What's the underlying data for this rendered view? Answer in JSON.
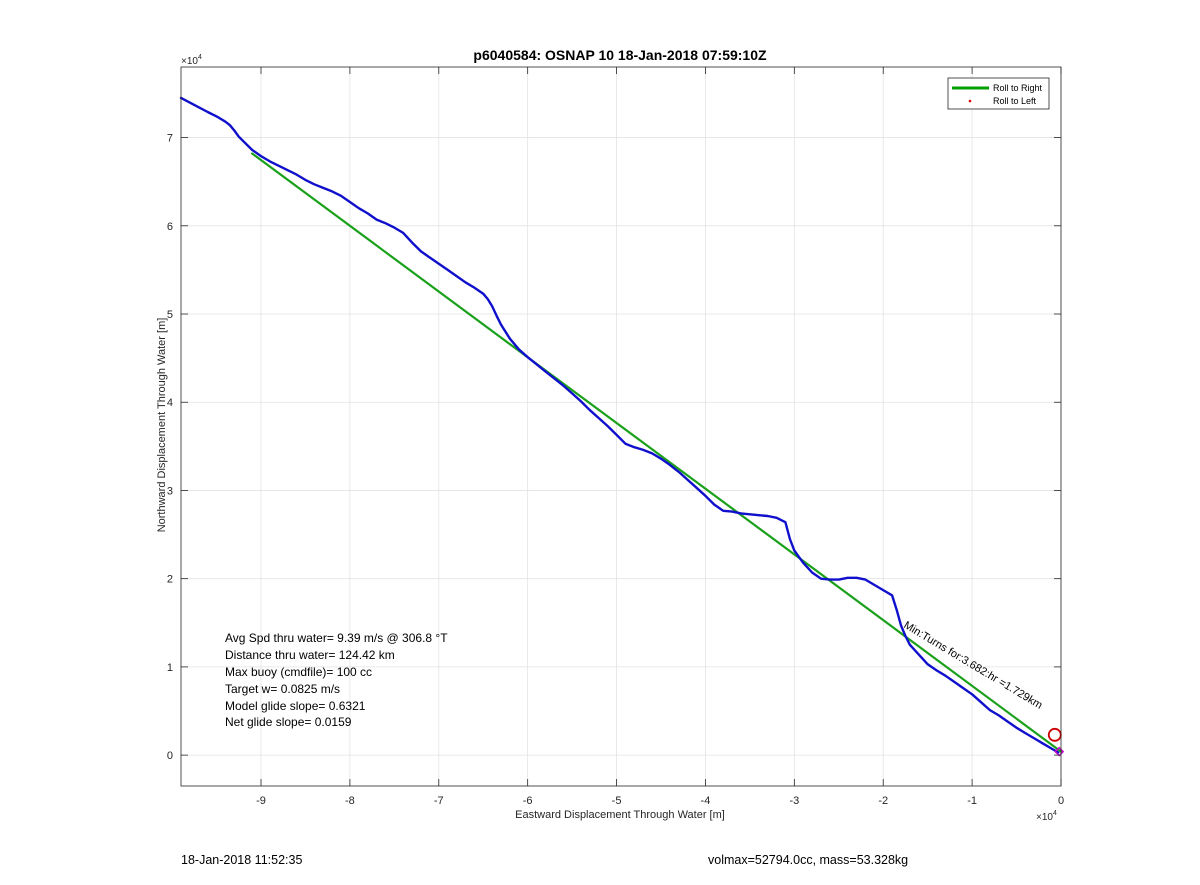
{
  "chart_data": {
    "type": "line",
    "title": "p6040584: OSNAP 10 18-Jan-2018 07:59:10Z",
    "xlabel": "Eastward Displacement Through Water [m]",
    "ylabel": "Northward Displacement Through Water [m]",
    "x_exponent_label": "×10",
    "x_exponent": "4",
    "y_exponent_label": "×10",
    "y_exponent": "4",
    "xlim": [
      -99000,
      0
    ],
    "ylim": [
      -3500,
      78000
    ],
    "x_ticks": [
      -90000,
      -80000,
      -70000,
      -60000,
      -50000,
      -40000,
      -30000,
      -20000,
      -10000,
      0
    ],
    "x_tick_labels": [
      "-9",
      "-8",
      "-7",
      "-6",
      "-5",
      "-4",
      "-3",
      "-2",
      "-1",
      "0"
    ],
    "y_ticks": [
      0,
      10000,
      20000,
      30000,
      40000,
      50000,
      60000,
      70000
    ],
    "y_tick_labels": [
      "0",
      "1",
      "2",
      "3",
      "4",
      "5",
      "6",
      "7"
    ],
    "grid": true,
    "legend_position": "top-right",
    "legend": [
      {
        "label": "Roll to Right",
        "color": "#00a000",
        "style": "line"
      },
      {
        "label": "Roll to Left",
        "color": "#e00000",
        "style": "dot"
      }
    ],
    "series": [
      {
        "name": "Roll to Right",
        "color": "#1aa01a",
        "x": [
          -91000,
          0
        ],
        "y": [
          68200,
          400
        ]
      },
      {
        "color": "#1010cc",
        "x": [
          -99000,
          -97500,
          -96000,
          -95000,
          -94000,
          -93500,
          -93000,
          -92500,
          -91000,
          -90000,
          -89000,
          -88000,
          -87000,
          -86000,
          -85000,
          -84000,
          -83000,
          -82000,
          -81000,
          -80000,
          -79000,
          -78000,
          -77000,
          -76000,
          -75000,
          -74000,
          -73000,
          -72000,
          -71000,
          -70000,
          -69000,
          -68000,
          -67000,
          -66000,
          -65000,
          -64500,
          -64000,
          -63500,
          -63000,
          -62000,
          -61000,
          -60000,
          -59000,
          -58000,
          -57000,
          -56000,
          -55000,
          -54000,
          -53000,
          -52000,
          -51000,
          -50000,
          -49000,
          -48000,
          -47000,
          -46000,
          -45000,
          -44000,
          -43000,
          -42000,
          -41000,
          -40000,
          -39000,
          -38000,
          -37000,
          -36000,
          -35000,
          -34000,
          -33000,
          -32000,
          -31000,
          -30500,
          -30000,
          -29000,
          -28000,
          -27000,
          -26000,
          -25000,
          -24000,
          -23000,
          -22000,
          -21000,
          -20000,
          -19000,
          -18500,
          -18000,
          -17500,
          -17000,
          -16000,
          -15000,
          -14000,
          -13000,
          -12000,
          -11000,
          -10000,
          -9000,
          -8000,
          -7000,
          -6000,
          -5000,
          -4000,
          -3000,
          -2000,
          -1000,
          -300
        ],
        "y": [
          74500,
          73700,
          72900,
          72400,
          71800,
          71400,
          70800,
          70100,
          68600,
          67900,
          67300,
          66800,
          66300,
          65800,
          65200,
          64700,
          64300,
          63900,
          63400,
          62700,
          62000,
          61400,
          60700,
          60300,
          59800,
          59200,
          58100,
          57100,
          56400,
          55700,
          55000,
          54300,
          53600,
          53000,
          52300,
          51700,
          50900,
          49800,
          48800,
          47200,
          46000,
          45100,
          44300,
          43500,
          42700,
          41900,
          41000,
          40100,
          39100,
          38200,
          37300,
          36300,
          35300,
          34900,
          34600,
          34200,
          33600,
          32900,
          32100,
          31200,
          30300,
          29400,
          28400,
          27700,
          27600,
          27400,
          27300,
          27200,
          27100,
          26900,
          26400,
          24500,
          23200,
          21800,
          20700,
          20000,
          19900,
          19900,
          20100,
          20100,
          19900,
          19300,
          18700,
          18100,
          16500,
          14700,
          13500,
          12500,
          11400,
          10300,
          9600,
          9000,
          8300,
          7600,
          6900,
          6000,
          5100,
          4500,
          3800,
          3100,
          2500,
          1900,
          1300,
          700,
          300
        ]
      }
    ],
    "markers": [
      {
        "shape": "circle",
        "color": "#cc0000",
        "x": -700,
        "y": 2300
      },
      {
        "shape": "diamond",
        "color": "#cc00cc",
        "x": -200,
        "y": 400
      }
    ],
    "annotations": {
      "rotated": "Min:Turns for:3.682:hr =1.729km",
      "stats": [
        "Avg Spd thru water=  9.39 m/s @ 306.8 °T",
        "Distance thru water= 124.42 km",
        "Max buoy (cmdfile)= 100 cc",
        "Target w= 0.0825 m/s",
        "Model glide slope= 0.6321",
        "Net glide slope= 0.0159"
      ]
    }
  },
  "footer": {
    "timestamp": "18-Jan-2018 11:52:35",
    "info": "volmax=52794.0cc, mass=53.328kg"
  }
}
